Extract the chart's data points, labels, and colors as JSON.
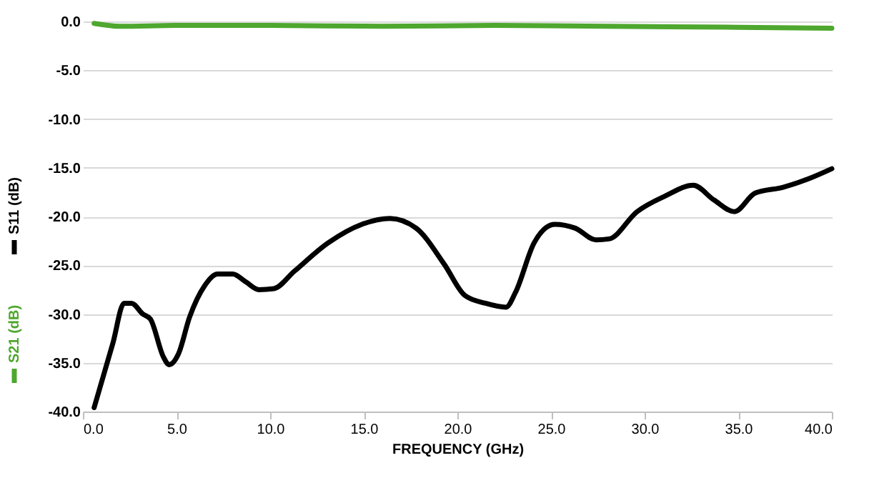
{
  "chart_data": {
    "type": "line",
    "xlabel": "FREQUENCY  (GHz)",
    "xlim": [
      0,
      40
    ],
    "xticks": [
      {
        "value": 0,
        "label": "0.0"
      },
      {
        "value": 5,
        "label": "5.0"
      },
      {
        "value": 10,
        "label": "10.0"
      },
      {
        "value": 15,
        "label": "15.0"
      },
      {
        "value": 20,
        "label": "20.0"
      },
      {
        "value": 25,
        "label": "25.0"
      },
      {
        "value": 30,
        "label": "30.0"
      },
      {
        "value": 35,
        "label": "35.0"
      },
      {
        "value": 40,
        "label": "40.0"
      }
    ],
    "ylim": [
      -40,
      0
    ],
    "yticks": [
      {
        "value": -40,
        "label": "-40.0"
      },
      {
        "value": -35,
        "label": "-35.0"
      },
      {
        "value": -30,
        "label": "-30.0"
      },
      {
        "value": -25,
        "label": "-25.0"
      },
      {
        "value": -20,
        "label": "-20.0"
      },
      {
        "value": -15,
        "label": "-15.0"
      },
      {
        "value": -10,
        "label": "-10.0"
      },
      {
        "value": -5,
        "label": "-5.0"
      },
      {
        "value": 0,
        "label": "0.0"
      }
    ],
    "grid": "y",
    "legend": "left",
    "line_style": "solid",
    "marker": "none",
    "series": [
      {
        "name": "S21 (dB)",
        "color": "#4ea72e",
        "x": [
          0.6,
          2,
          5,
          10,
          16,
          22,
          28,
          35,
          40
        ],
        "values": [
          -0.2,
          -0.5,
          -0.4,
          -0.4,
          -0.5,
          -0.4,
          -0.5,
          -0.6,
          -0.7
        ]
      },
      {
        "name": "S11 (dB)",
        "color": "#000000",
        "x": [
          0.6,
          1.6,
          2.2,
          2.6,
          3.2,
          3.6,
          4.3,
          4.6,
          5.1,
          5.7,
          6.5,
          7.2,
          8.0,
          8.7,
          9.4,
          10.2,
          11.3,
          13.1,
          14.9,
          16.4,
          17.8,
          19.3,
          20.4,
          21.5,
          22.6,
          23.1,
          24.1,
          25.2,
          26.3,
          27.4,
          28.1,
          29.6,
          31.1,
          32.6,
          33.7,
          34.8,
          35.9,
          37.4,
          38.8,
          40
        ],
        "values": [
          -39.6,
          -33.0,
          -28.9,
          -28.9,
          -30.0,
          -30.5,
          -34.4,
          -35.2,
          -34.1,
          -30.3,
          -27.1,
          -25.9,
          -25.9,
          -26.7,
          -27.5,
          -27.4,
          -25.6,
          -22.7,
          -20.8,
          -20.2,
          -21.2,
          -24.9,
          -28.1,
          -28.9,
          -29.3,
          -27.8,
          -22.7,
          -20.8,
          -21.2,
          -22.4,
          -22.3,
          -19.5,
          -17.9,
          -16.8,
          -18.3,
          -19.5,
          -17.6,
          -17.0,
          -16.1,
          -15.1
        ]
      }
    ]
  }
}
